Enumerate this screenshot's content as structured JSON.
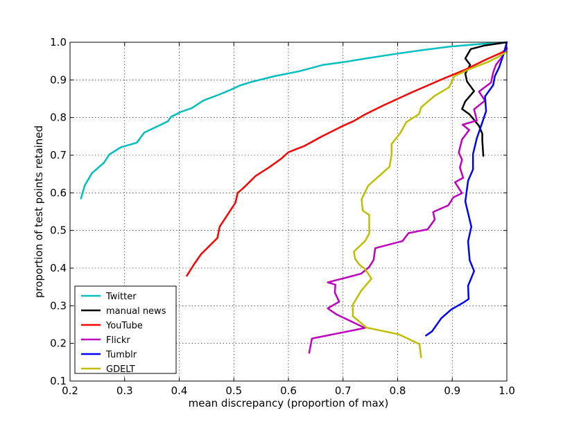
{
  "chart_data": {
    "type": "line",
    "title": "",
    "xlabel": "mean discrepancy (proportion of max)",
    "ylabel": "proportion of test points retained",
    "xlim": [
      0.2,
      1.0
    ],
    "ylim": [
      0.1,
      1.0
    ],
    "xticks": [
      "0.2",
      "0.3",
      "0.4",
      "0.5",
      "0.6",
      "0.7",
      "0.8",
      "0.9",
      "1.0"
    ],
    "yticks": [
      "0.1",
      "0.2",
      "0.3",
      "0.4",
      "0.5",
      "0.6",
      "0.7",
      "0.8",
      "0.9",
      "1.0"
    ],
    "grid": true,
    "legend_position": "lower-left",
    "series": [
      {
        "name": "Twitter",
        "color": "#00bfbf",
        "points": [
          [
            0.22,
            0.585
          ],
          [
            0.227,
            0.62
          ],
          [
            0.24,
            0.652
          ],
          [
            0.262,
            0.68
          ],
          [
            0.272,
            0.702
          ],
          [
            0.293,
            0.721
          ],
          [
            0.322,
            0.733
          ],
          [
            0.336,
            0.76
          ],
          [
            0.368,
            0.782
          ],
          [
            0.379,
            0.79
          ],
          [
            0.385,
            0.802
          ],
          [
            0.403,
            0.815
          ],
          [
            0.423,
            0.825
          ],
          [
            0.444,
            0.845
          ],
          [
            0.473,
            0.861
          ],
          [
            0.493,
            0.873
          ],
          [
            0.511,
            0.885
          ],
          [
            0.533,
            0.895
          ],
          [
            0.575,
            0.91
          ],
          [
            0.62,
            0.923
          ],
          [
            0.664,
            0.94
          ],
          [
            0.7,
            0.947
          ],
          [
            0.742,
            0.957
          ],
          [
            0.796,
            0.969
          ],
          [
            0.845,
            0.979
          ],
          [
            0.893,
            0.988
          ],
          [
            0.94,
            0.994
          ],
          [
            0.976,
            0.998
          ],
          [
            1.0,
            1.0
          ]
        ]
      },
      {
        "name": "manual news",
        "color": "#000000",
        "points": [
          [
            0.957,
            0.698
          ],
          [
            0.955,
            0.739
          ],
          [
            0.955,
            0.757
          ],
          [
            0.949,
            0.778
          ],
          [
            0.932,
            0.808
          ],
          [
            0.918,
            0.823
          ],
          [
            0.924,
            0.843
          ],
          [
            0.94,
            0.87
          ],
          [
            0.927,
            0.896
          ],
          [
            0.924,
            0.917
          ],
          [
            0.933,
            0.94
          ],
          [
            0.924,
            0.957
          ],
          [
            0.934,
            0.982
          ],
          [
            0.958,
            0.991
          ],
          [
            1.0,
            1.0
          ]
        ]
      },
      {
        "name": "YouTube",
        "color": "#ff0000",
        "points": [
          [
            0.414,
            0.38
          ],
          [
            0.427,
            0.41
          ],
          [
            0.44,
            0.437
          ],
          [
            0.47,
            0.48
          ],
          [
            0.474,
            0.51
          ],
          [
            0.485,
            0.534
          ],
          [
            0.503,
            0.574
          ],
          [
            0.507,
            0.6
          ],
          [
            0.517,
            0.612
          ],
          [
            0.54,
            0.645
          ],
          [
            0.566,
            0.669
          ],
          [
            0.587,
            0.691
          ],
          [
            0.6,
            0.708
          ],
          [
            0.63,
            0.725
          ],
          [
            0.66,
            0.749
          ],
          [
            0.7,
            0.778
          ],
          [
            0.72,
            0.791
          ],
          [
            0.74,
            0.808
          ],
          [
            0.775,
            0.833
          ],
          [
            0.826,
            0.867
          ],
          [
            0.88,
            0.901
          ],
          [
            0.925,
            0.928
          ],
          [
            0.963,
            0.955
          ],
          [
            0.99,
            0.972
          ],
          [
            1.0,
            0.982
          ]
        ]
      },
      {
        "name": "Flickr",
        "color": "#bf00bf",
        "points": [
          [
            0.638,
            0.175
          ],
          [
            0.643,
            0.213
          ],
          [
            0.74,
            0.241
          ],
          [
            0.688,
            0.277
          ],
          [
            0.672,
            0.293
          ],
          [
            0.693,
            0.311
          ],
          [
            0.685,
            0.335
          ],
          [
            0.686,
            0.356
          ],
          [
            0.672,
            0.362
          ],
          [
            0.733,
            0.385
          ],
          [
            0.748,
            0.403
          ],
          [
            0.756,
            0.422
          ],
          [
            0.759,
            0.453
          ],
          [
            0.809,
            0.472
          ],
          [
            0.82,
            0.493
          ],
          [
            0.855,
            0.503
          ],
          [
            0.868,
            0.529
          ],
          [
            0.865,
            0.549
          ],
          [
            0.893,
            0.567
          ],
          [
            0.902,
            0.588
          ],
          [
            0.918,
            0.599
          ],
          [
            0.905,
            0.628
          ],
          [
            0.92,
            0.64
          ],
          [
            0.914,
            0.667
          ],
          [
            0.918,
            0.688
          ],
          [
            0.912,
            0.707
          ],
          [
            0.918,
            0.742
          ],
          [
            0.931,
            0.767
          ],
          [
            0.919,
            0.781
          ],
          [
            0.945,
            0.792
          ],
          [
            0.94,
            0.822
          ],
          [
            0.96,
            0.845
          ],
          [
            0.949,
            0.869
          ],
          [
            0.971,
            0.893
          ],
          [
            0.975,
            0.92
          ],
          [
            0.98,
            0.94
          ],
          [
            0.992,
            0.963
          ],
          [
            1.0,
            0.985
          ]
        ]
      },
      {
        "name": "Tumblr",
        "color": "#0000ff",
        "points": [
          [
            0.852,
            0.221
          ],
          [
            0.863,
            0.232
          ],
          [
            0.88,
            0.267
          ],
          [
            0.898,
            0.29
          ],
          [
            0.921,
            0.309
          ],
          [
            0.93,
            0.318
          ],
          [
            0.929,
            0.353
          ],
          [
            0.94,
            0.392
          ],
          [
            0.932,
            0.421
          ],
          [
            0.929,
            0.471
          ],
          [
            0.935,
            0.51
          ],
          [
            0.924,
            0.577
          ],
          [
            0.929,
            0.632
          ],
          [
            0.938,
            0.662
          ],
          [
            0.938,
            0.703
          ],
          [
            0.945,
            0.745
          ],
          [
            0.955,
            0.787
          ],
          [
            0.962,
            0.817
          ],
          [
            0.96,
            0.856
          ],
          [
            0.975,
            0.886
          ],
          [
            0.978,
            0.91
          ],
          [
            0.986,
            0.934
          ],
          [
            0.993,
            0.964
          ],
          [
            1.0,
            1.0
          ]
        ]
      },
      {
        "name": "GDELT",
        "color": "#bfbf00",
        "points": [
          [
            0.843,
            0.163
          ],
          [
            0.84,
            0.198
          ],
          [
            0.802,
            0.224
          ],
          [
            0.743,
            0.242
          ],
          [
            0.718,
            0.272
          ],
          [
            0.718,
            0.303
          ],
          [
            0.733,
            0.339
          ],
          [
            0.752,
            0.372
          ],
          [
            0.74,
            0.398
          ],
          [
            0.73,
            0.409
          ],
          [
            0.722,
            0.425
          ],
          [
            0.72,
            0.444
          ],
          [
            0.741,
            0.473
          ],
          [
            0.748,
            0.492
          ],
          [
            0.748,
            0.541
          ],
          [
            0.736,
            0.553
          ],
          [
            0.734,
            0.583
          ],
          [
            0.746,
            0.619
          ],
          [
            0.771,
            0.651
          ],
          [
            0.785,
            0.669
          ],
          [
            0.789,
            0.701
          ],
          [
            0.789,
            0.73
          ],
          [
            0.805,
            0.759
          ],
          [
            0.816,
            0.788
          ],
          [
            0.839,
            0.809
          ],
          [
            0.843,
            0.827
          ],
          [
            0.867,
            0.857
          ],
          [
            0.894,
            0.88
          ],
          [
            0.904,
            0.91
          ],
          [
            0.932,
            0.929
          ],
          [
            0.966,
            0.948
          ],
          [
            0.984,
            0.961
          ],
          [
            1.0,
            0.975
          ]
        ]
      }
    ]
  }
}
